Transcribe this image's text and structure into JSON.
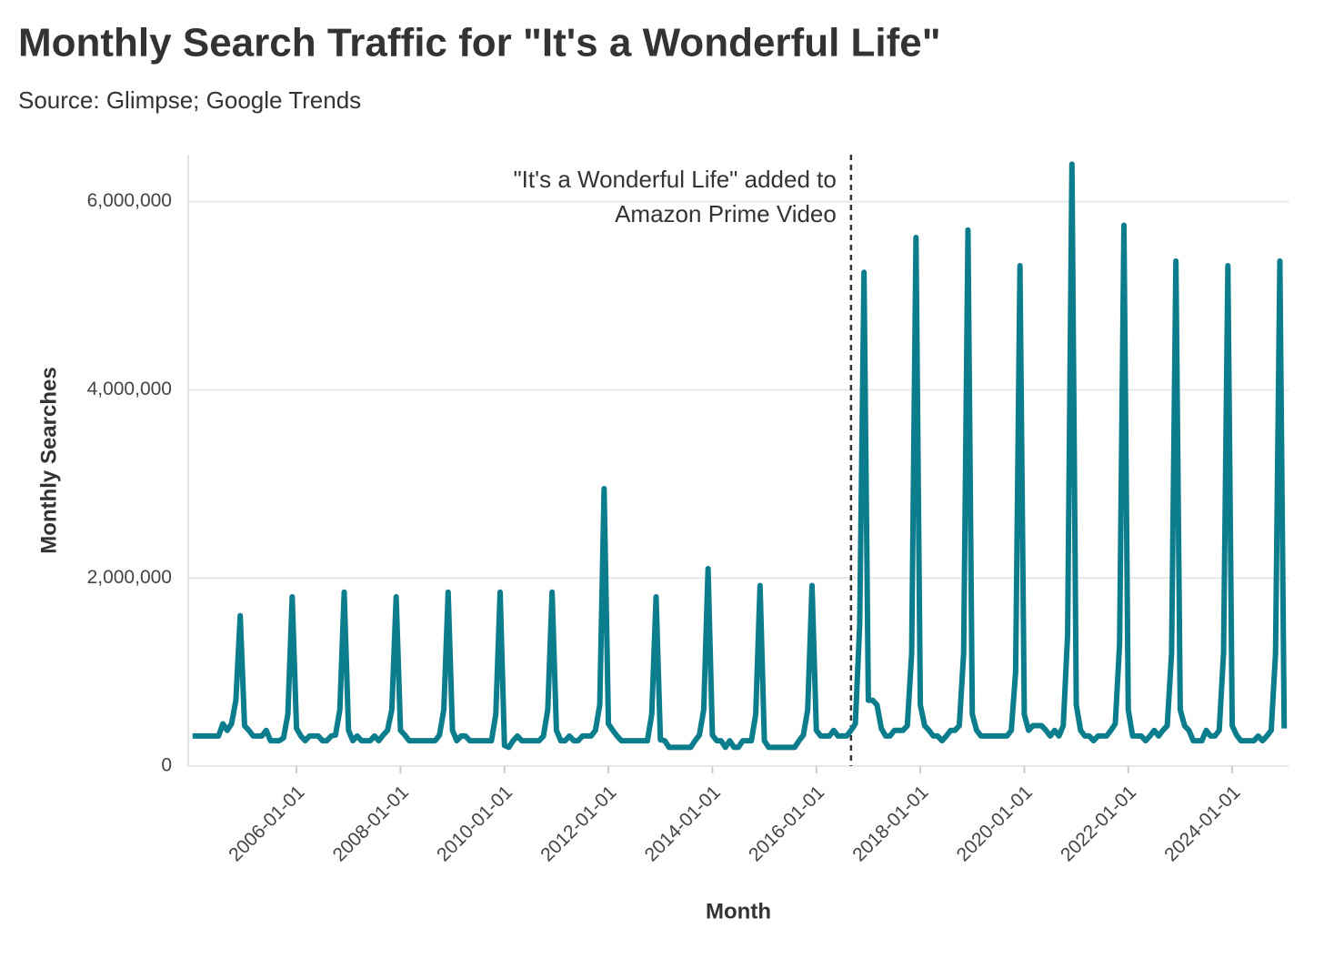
{
  "chart_data": {
    "type": "line",
    "title": "Monthly Search Traffic for \"It's a Wonderful Life\"",
    "subtitle": "Source: Glimpse; Google Trends",
    "x_label": "Month",
    "y_label": "Monthly Searches",
    "color": "#0b7d8c",
    "grid": true,
    "annotation": {
      "x": "2016-09-01",
      "text": [
        "\"It's a Wonderful Life\" added to",
        "Amazon Prime Video"
      ]
    },
    "xlim": [
      "2003-12-01",
      "2025-02-01"
    ],
    "xticks": [
      "2006-01-01",
      "2008-01-01",
      "2010-01-01",
      "2012-01-01",
      "2014-01-01",
      "2016-01-01",
      "2018-01-01",
      "2020-01-01",
      "2022-01-01",
      "2024-01-01"
    ],
    "ylim": [
      0,
      6500000
    ],
    "yticks": [
      0,
      {
        "value": 2000000,
        "label": "2,000,000"
      },
      {
        "value": 4000000,
        "label": "4,000,000"
      },
      {
        "value": 6000000,
        "label": "6,000,000"
      }
    ],
    "x": [
      "2004-01-01",
      "2004-02-01",
      "2004-03-01",
      "2004-04-01",
      "2004-05-01",
      "2004-06-01",
      "2004-07-01",
      "2004-08-01",
      "2004-09-01",
      "2004-10-01",
      "2004-11-01",
      "2004-12-01",
      "2005-01-01",
      "2005-02-01",
      "2005-03-01",
      "2005-04-01",
      "2005-05-01",
      "2005-06-01",
      "2005-07-01",
      "2005-08-01",
      "2005-09-01",
      "2005-10-01",
      "2005-11-01",
      "2005-12-01",
      "2006-01-01",
      "2006-02-01",
      "2006-03-01",
      "2006-04-01",
      "2006-05-01",
      "2006-06-01",
      "2006-07-01",
      "2006-08-01",
      "2006-09-01",
      "2006-10-01",
      "2006-11-01",
      "2006-12-01",
      "2007-01-01",
      "2007-02-01",
      "2007-03-01",
      "2007-04-01",
      "2007-05-01",
      "2007-06-01",
      "2007-07-01",
      "2007-08-01",
      "2007-09-01",
      "2007-10-01",
      "2007-11-01",
      "2007-12-01",
      "2008-01-01",
      "2008-02-01",
      "2008-03-01",
      "2008-04-01",
      "2008-05-01",
      "2008-06-01",
      "2008-07-01",
      "2008-08-01",
      "2008-09-01",
      "2008-10-01",
      "2008-11-01",
      "2008-12-01",
      "2009-01-01",
      "2009-02-01",
      "2009-03-01",
      "2009-04-01",
      "2009-05-01",
      "2009-06-01",
      "2009-07-01",
      "2009-08-01",
      "2009-09-01",
      "2009-10-01",
      "2009-11-01",
      "2009-12-01",
      "2010-01-01",
      "2010-02-01",
      "2010-03-01",
      "2010-04-01",
      "2010-05-01",
      "2010-06-01",
      "2010-07-01",
      "2010-08-01",
      "2010-09-01",
      "2010-10-01",
      "2010-11-01",
      "2010-12-01",
      "2011-01-01",
      "2011-02-01",
      "2011-03-01",
      "2011-04-01",
      "2011-05-01",
      "2011-06-01",
      "2011-07-01",
      "2011-08-01",
      "2011-09-01",
      "2011-10-01",
      "2011-11-01",
      "2011-12-01",
      "2012-01-01",
      "2012-02-01",
      "2012-03-01",
      "2012-04-01",
      "2012-05-01",
      "2012-06-01",
      "2012-07-01",
      "2012-08-01",
      "2012-09-01",
      "2012-10-01",
      "2012-11-01",
      "2012-12-01",
      "2013-01-01",
      "2013-02-01",
      "2013-03-01",
      "2013-04-01",
      "2013-05-01",
      "2013-06-01",
      "2013-07-01",
      "2013-08-01",
      "2013-09-01",
      "2013-10-01",
      "2013-11-01",
      "2013-12-01",
      "2014-01-01",
      "2014-02-01",
      "2014-03-01",
      "2014-04-01",
      "2014-05-01",
      "2014-06-01",
      "2014-07-01",
      "2014-08-01",
      "2014-09-01",
      "2014-10-01",
      "2014-11-01",
      "2014-12-01",
      "2015-01-01",
      "2015-02-01",
      "2015-03-01",
      "2015-04-01",
      "2015-05-01",
      "2015-06-01",
      "2015-07-01",
      "2015-08-01",
      "2015-09-01",
      "2015-10-01",
      "2015-11-01",
      "2015-12-01",
      "2016-01-01",
      "2016-02-01",
      "2016-03-01",
      "2016-04-01",
      "2016-05-01",
      "2016-06-01",
      "2016-07-01",
      "2016-08-01",
      "2016-09-01",
      "2016-10-01",
      "2016-11-01",
      "2016-12-01",
      "2017-01-01",
      "2017-02-01",
      "2017-03-01",
      "2017-04-01",
      "2017-05-01",
      "2017-06-01",
      "2017-07-01",
      "2017-08-01",
      "2017-09-01",
      "2017-10-01",
      "2017-11-01",
      "2017-12-01",
      "2018-01-01",
      "2018-02-01",
      "2018-03-01",
      "2018-04-01",
      "2018-05-01",
      "2018-06-01",
      "2018-07-01",
      "2018-08-01",
      "2018-09-01",
      "2018-10-01",
      "2018-11-01",
      "2018-12-01",
      "2019-01-01",
      "2019-02-01",
      "2019-03-01",
      "2019-04-01",
      "2019-05-01",
      "2019-06-01",
      "2019-07-01",
      "2019-08-01",
      "2019-09-01",
      "2019-10-01",
      "2019-11-01",
      "2019-12-01",
      "2020-01-01",
      "2020-02-01",
      "2020-03-01",
      "2020-04-01",
      "2020-05-01",
      "2020-06-01",
      "2020-07-01",
      "2020-08-01",
      "2020-09-01",
      "2020-10-01",
      "2020-11-01",
      "2020-12-01",
      "2021-01-01",
      "2021-02-01",
      "2021-03-01",
      "2021-04-01",
      "2021-05-01",
      "2021-06-01",
      "2021-07-01",
      "2021-08-01",
      "2021-09-01",
      "2021-10-01",
      "2021-11-01",
      "2021-12-01",
      "2022-01-01",
      "2022-02-01",
      "2022-03-01",
      "2022-04-01",
      "2022-05-01",
      "2022-06-01",
      "2022-07-01",
      "2022-08-01",
      "2022-09-01",
      "2022-10-01",
      "2022-11-01",
      "2022-12-01",
      "2023-01-01",
      "2023-02-01",
      "2023-03-01",
      "2023-04-01",
      "2023-05-01",
      "2023-06-01",
      "2023-07-01",
      "2023-08-01",
      "2023-09-01",
      "2023-10-01",
      "2023-11-01",
      "2023-12-01",
      "2024-01-01",
      "2024-02-01",
      "2024-03-01",
      "2024-04-01",
      "2024-05-01",
      "2024-06-01",
      "2024-07-01",
      "2024-08-01",
      "2024-09-01",
      "2024-10-01",
      "2024-11-01",
      "2024-12-01",
      "2025-01-01"
    ],
    "values": [
      320000,
      320000,
      320000,
      320000,
      320000,
      320000,
      320000,
      450000,
      380000,
      450000,
      700000,
      1600000,
      430000,
      380000,
      320000,
      320000,
      320000,
      380000,
      270000,
      270000,
      270000,
      300000,
      550000,
      1800000,
      400000,
      320000,
      270000,
      320000,
      320000,
      320000,
      270000,
      270000,
      320000,
      330000,
      600000,
      1850000,
      380000,
      270000,
      320000,
      270000,
      270000,
      270000,
      320000,
      270000,
      330000,
      380000,
      600000,
      1800000,
      380000,
      330000,
      270000,
      270000,
      270000,
      270000,
      270000,
      270000,
      270000,
      330000,
      600000,
      1850000,
      380000,
      270000,
      320000,
      320000,
      270000,
      270000,
      270000,
      270000,
      270000,
      270000,
      550000,
      1850000,
      220000,
      200000,
      270000,
      320000,
      270000,
      270000,
      270000,
      270000,
      270000,
      320000,
      600000,
      1850000,
      380000,
      270000,
      270000,
      320000,
      270000,
      270000,
      320000,
      320000,
      320000,
      380000,
      650000,
      2950000,
      450000,
      380000,
      320000,
      270000,
      270000,
      270000,
      270000,
      270000,
      270000,
      270000,
      550000,
      1800000,
      280000,
      270000,
      200000,
      200000,
      200000,
      200000,
      200000,
      200000,
      270000,
      330000,
      600000,
      2100000,
      330000,
      270000,
      270000,
      200000,
      270000,
      200000,
      200000,
      270000,
      270000,
      270000,
      550000,
      1920000,
      270000,
      200000,
      200000,
      200000,
      200000,
      200000,
      200000,
      200000,
      270000,
      330000,
      600000,
      1920000,
      380000,
      320000,
      320000,
      320000,
      380000,
      320000,
      320000,
      320000,
      380000,
      450000,
      1500000,
      5250000,
      700000,
      700000,
      650000,
      400000,
      320000,
      320000,
      380000,
      380000,
      380000,
      430000,
      1200000,
      5620000,
      650000,
      430000,
      380000,
      320000,
      320000,
      270000,
      320000,
      380000,
      380000,
      430000,
      1200000,
      5700000,
      550000,
      380000,
      320000,
      320000,
      320000,
      320000,
      320000,
      320000,
      320000,
      380000,
      1000000,
      5320000,
      550000,
      380000,
      430000,
      430000,
      430000,
      380000,
      320000,
      380000,
      320000,
      430000,
      1400000,
      6400000,
      650000,
      380000,
      320000,
      320000,
      270000,
      320000,
      320000,
      320000,
      380000,
      450000,
      1300000,
      5750000,
      600000,
      320000,
      320000,
      320000,
      270000,
      320000,
      380000,
      320000,
      380000,
      430000,
      1200000,
      5370000,
      600000,
      430000,
      380000,
      270000,
      270000,
      270000,
      380000,
      320000,
      320000,
      380000,
      1200000,
      5320000,
      430000,
      330000,
      270000,
      270000,
      270000,
      270000,
      320000,
      270000,
      320000,
      380000,
      1200000,
      5370000,
      400000
    ]
  }
}
